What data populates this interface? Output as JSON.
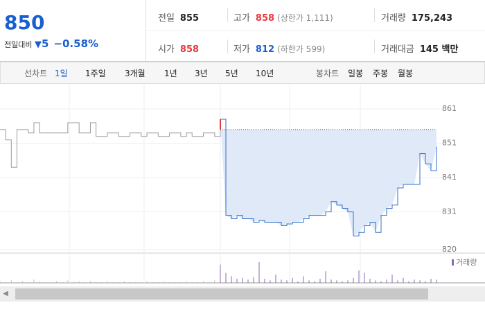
{
  "header": {
    "price": 850,
    "change_label": "전일대비",
    "change": 5,
    "change_pct": "−0.58%",
    "stats": [
      {
        "label": "전일",
        "value": "855"
      },
      {
        "label": "고가",
        "value": "858",
        "note": "(상한가 1,111)"
      },
      {
        "label": "거래량",
        "value": "175,243"
      },
      {
        "label": "시가",
        "value": "858"
      },
      {
        "label": "저가",
        "value": "812",
        "note": "(하한가 599)"
      },
      {
        "label": "거래대금",
        "value": "145 백만"
      }
    ]
  },
  "tabs": {
    "line_label": "선차트",
    "line_tabs": [
      "1일",
      "1주일",
      "3개월",
      "1년",
      "3년",
      "5년",
      "10년"
    ],
    "selected": 0,
    "candle_label": "봉차트",
    "candle_tabs": [
      "일봉",
      "주봉",
      "월봉"
    ]
  },
  "chart_data": {
    "type": "line",
    "ylim": [
      819,
      867.5
    ],
    "yticks": [
      861,
      851,
      841,
      831,
      820
    ],
    "reference": 855,
    "series": [
      {
        "color": "#9a9a9a",
        "values": [
          855,
          852,
          844,
          855,
          855,
          854,
          857,
          854,
          854,
          854,
          854,
          854,
          857,
          857,
          854,
          854,
          857,
          853,
          853,
          854,
          854,
          853,
          853,
          854,
          854,
          853,
          854,
          854,
          853,
          853,
          854,
          854,
          853,
          854,
          853,
          853,
          854,
          854,
          853,
          855
        ],
        "volume": [
          2,
          1,
          3,
          1,
          2,
          1,
          4,
          2,
          1,
          1,
          2,
          1,
          3,
          1,
          2,
          1,
          2,
          1,
          1,
          2,
          1,
          1,
          2,
          1,
          1,
          1,
          2,
          1,
          1,
          2,
          1,
          1,
          1,
          2,
          1,
          1,
          2,
          1,
          3,
          2
        ]
      },
      {
        "color": "#2f6fcf",
        "open_color": "#e8383d",
        "fill": "#dfe9f8",
        "values": [
          858,
          830,
          829,
          830,
          829,
          829,
          828,
          828.5,
          828,
          828,
          828,
          827,
          827.5,
          828,
          828,
          829,
          830,
          830,
          830,
          831,
          834,
          833,
          832,
          831,
          824,
          825,
          827,
          828,
          825,
          830,
          832,
          833,
          838,
          839,
          839,
          839,
          848,
          845,
          843,
          850
        ],
        "volume": [
          22,
          12,
          8,
          5,
          6,
          4,
          7,
          25,
          5,
          3,
          10,
          4,
          3,
          6,
          2,
          8,
          3,
          2,
          5,
          14,
          4,
          3,
          2,
          3,
          6,
          15,
          12,
          5,
          3,
          2,
          4,
          10,
          3,
          6,
          2,
          4,
          3,
          2,
          5,
          4
        ],
        "volume_color": "#8a6bb0"
      }
    ],
    "volume_lim": [
      0,
      30
    ],
    "volume_label": "거래량"
  }
}
